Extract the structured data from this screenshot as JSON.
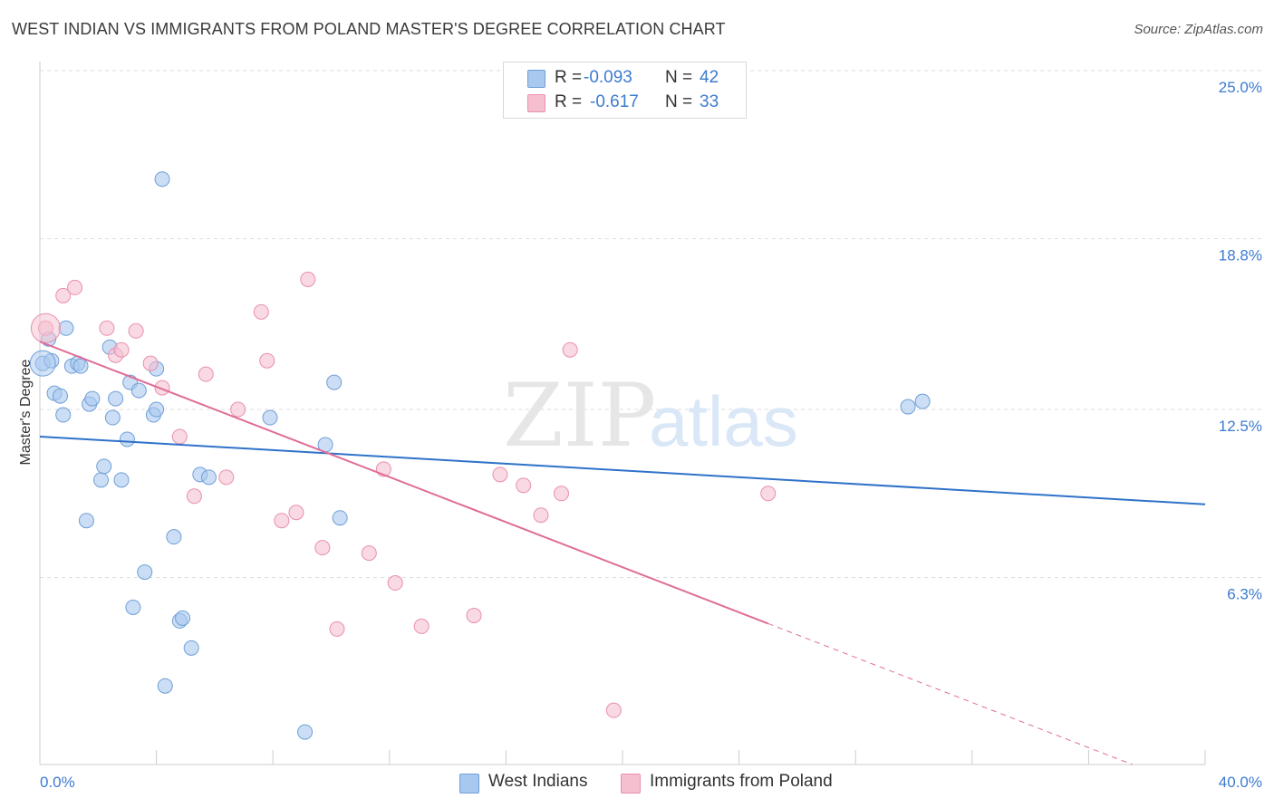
{
  "title": "WEST INDIAN VS IMMIGRANTS FROM POLAND MASTER'S DEGREE CORRELATION CHART",
  "source": "Source: ZipAtlas.com",
  "watermark": {
    "zip": "ZIP",
    "atlas": "atlas"
  },
  "colors": {
    "blue_fill": "#a9c8ef",
    "blue_stroke": "#6f9fd8",
    "blue_line": "#2f72c9",
    "pink_fill": "#f5bfd0",
    "pink_stroke": "#e98fae",
    "pink_line": "#e06d98",
    "grid": "#dddddd",
    "tick_text": "#3d7bd0"
  },
  "legend": {
    "rows": [
      {
        "r_label": "R =",
        "r_value": "-0.093",
        "n_label": "N =",
        "n_value": "42",
        "color": "#a9c8ef",
        "border": "#6f9fd8"
      },
      {
        "r_label": "R =",
        "r_value": "-0.617",
        "n_label": "N =",
        "n_value": "33",
        "color": "#f5bfd0",
        "border": "#e98fae"
      }
    ]
  },
  "bottom_legend": [
    {
      "label": "West Indians",
      "color": "#a9c8ef",
      "border": "#6f9fd8"
    },
    {
      "label": "Immigrants from Poland",
      "color": "#f5bfd0",
      "border": "#e98fae"
    }
  ],
  "chart_data": {
    "type": "scatter",
    "title": "WEST INDIAN VS IMMIGRANTS FROM POLAND MASTER'S DEGREE CORRELATION CHART",
    "xlabel": "",
    "ylabel": "Master's Degree",
    "xlim": [
      0,
      40
    ],
    "ylim": [
      0,
      25
    ],
    "x_tick_labels": [
      "0.0%",
      "40.0%"
    ],
    "y_ticks": [
      6.3,
      12.5,
      18.8,
      25.0
    ],
    "y_tick_labels": [
      "6.3%",
      "12.5%",
      "18.8%",
      "25.0%"
    ],
    "series": [
      {
        "name": "West Indians",
        "trend": {
          "x0": 0,
          "y0": 12.1,
          "x1": 40,
          "y1": 9.6
        },
        "points": [
          [
            0.1,
            14.8
          ],
          [
            0.3,
            15.7
          ],
          [
            0.4,
            14.9
          ],
          [
            0.5,
            13.7
          ],
          [
            0.7,
            13.6
          ],
          [
            0.8,
            12.9
          ],
          [
            0.9,
            16.1
          ],
          [
            1.1,
            14.7
          ],
          [
            1.3,
            14.8
          ],
          [
            1.4,
            14.7
          ],
          [
            1.6,
            9.0
          ],
          [
            1.7,
            13.3
          ],
          [
            1.8,
            13.5
          ],
          [
            2.1,
            10.5
          ],
          [
            2.2,
            11.0
          ],
          [
            2.4,
            15.4
          ],
          [
            2.5,
            12.8
          ],
          [
            2.6,
            13.5
          ],
          [
            2.8,
            10.5
          ],
          [
            3.0,
            12.0
          ],
          [
            3.1,
            14.1
          ],
          [
            3.2,
            5.8
          ],
          [
            3.4,
            13.8
          ],
          [
            3.6,
            7.1
          ],
          [
            3.9,
            12.9
          ],
          [
            4.0,
            13.1
          ],
          [
            4.0,
            14.6
          ],
          [
            4.2,
            21.6
          ],
          [
            4.3,
            2.9
          ],
          [
            4.6,
            8.4
          ],
          [
            4.8,
            5.3
          ],
          [
            4.9,
            5.4
          ],
          [
            5.2,
            4.3
          ],
          [
            5.5,
            10.7
          ],
          [
            5.8,
            10.6
          ],
          [
            7.9,
            12.8
          ],
          [
            9.1,
            1.2
          ],
          [
            9.8,
            11.8
          ],
          [
            10.1,
            14.1
          ],
          [
            10.3,
            9.1
          ],
          [
            29.8,
            13.2
          ],
          [
            30.3,
            13.4
          ]
        ]
      },
      {
        "name": "Immigrants from Poland",
        "trend": {
          "x0": 0,
          "y0": 15.6,
          "x1": 25.0,
          "y1": 5.2,
          "dash_x1": 37.5,
          "dash_y1": 0
        },
        "points": [
          [
            0.2,
            16.1
          ],
          [
            0.8,
            17.3
          ],
          [
            1.2,
            17.6
          ],
          [
            2.3,
            16.1
          ],
          [
            2.6,
            15.1
          ],
          [
            2.8,
            15.3
          ],
          [
            3.3,
            16.0
          ],
          [
            3.8,
            14.8
          ],
          [
            4.2,
            13.9
          ],
          [
            4.8,
            12.1
          ],
          [
            5.3,
            9.9
          ],
          [
            5.7,
            14.4
          ],
          [
            6.4,
            10.6
          ],
          [
            6.8,
            13.1
          ],
          [
            7.6,
            16.7
          ],
          [
            7.8,
            14.9
          ],
          [
            8.3,
            9.0
          ],
          [
            8.8,
            9.3
          ],
          [
            9.2,
            17.9
          ],
          [
            9.7,
            8.0
          ],
          [
            10.2,
            5.0
          ],
          [
            11.3,
            7.8
          ],
          [
            11.8,
            10.9
          ],
          [
            12.2,
            6.7
          ],
          [
            13.1,
            5.1
          ],
          [
            14.9,
            5.5
          ],
          [
            15.8,
            10.7
          ],
          [
            16.6,
            10.3
          ],
          [
            17.2,
            9.2
          ],
          [
            17.9,
            10.0
          ],
          [
            18.2,
            15.3
          ],
          [
            19.7,
            2.0
          ],
          [
            25.0,
            10.0
          ]
        ]
      }
    ]
  }
}
